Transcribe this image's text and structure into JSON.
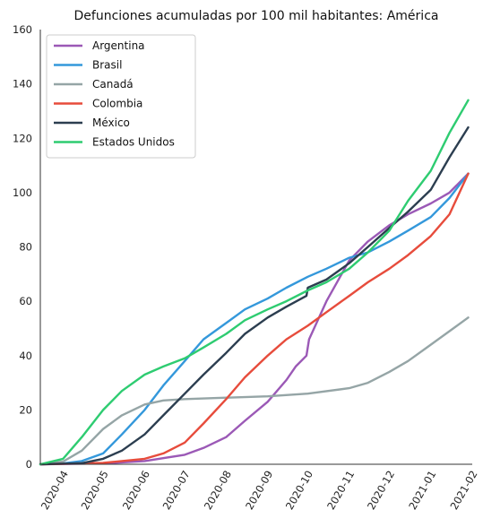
{
  "chart_data": {
    "type": "line",
    "title": "Defunciones acumuladas por 100 mil habitantes: América",
    "xlabel": "",
    "ylabel": "",
    "ylim": [
      0,
      160
    ],
    "xlim": [
      "2020-03-15",
      "2021-02-01"
    ],
    "yticks": [
      0,
      20,
      40,
      60,
      80,
      100,
      120,
      140,
      160
    ],
    "xticks": [
      "2020-04",
      "2020-05",
      "2020-06",
      "2020-07",
      "2020-08",
      "2020-09",
      "2020-10",
      "2020-11",
      "2020-12",
      "2021-01",
      "2021-02"
    ],
    "grid": false,
    "legend_position": "top-left",
    "series": [
      {
        "name": "Argentina",
        "color": "#9b59b6",
        "points": [
          [
            "2020-03-15",
            0
          ],
          [
            "2020-05-01",
            0.3
          ],
          [
            "2020-06-01",
            1.2
          ],
          [
            "2020-07-01",
            3.5
          ],
          [
            "2020-07-15",
            6
          ],
          [
            "2020-08-01",
            10
          ],
          [
            "2020-08-15",
            16
          ],
          [
            "2020-09-01",
            23
          ],
          [
            "2020-09-15",
            31
          ],
          [
            "2020-09-22",
            36
          ],
          [
            "2020-09-30",
            40
          ],
          [
            "2020-10-02",
            46
          ],
          [
            "2020-10-15",
            60
          ],
          [
            "2020-11-01",
            75
          ],
          [
            "2020-11-15",
            82
          ],
          [
            "2020-12-01",
            88
          ],
          [
            "2020-12-15",
            92
          ],
          [
            "2021-01-01",
            96
          ],
          [
            "2021-01-15",
            100
          ],
          [
            "2021-01-29",
            107
          ]
        ]
      },
      {
        "name": "Brasil",
        "color": "#3498db",
        "points": [
          [
            "2020-03-15",
            0
          ],
          [
            "2020-04-01",
            0.3
          ],
          [
            "2020-04-15",
            1.2
          ],
          [
            "2020-05-01",
            4
          ],
          [
            "2020-05-15",
            11
          ],
          [
            "2020-06-01",
            20
          ],
          [
            "2020-06-15",
            29
          ],
          [
            "2020-07-01",
            38
          ],
          [
            "2020-07-15",
            46
          ],
          [
            "2020-08-01",
            52
          ],
          [
            "2020-08-15",
            57
          ],
          [
            "2020-09-01",
            61
          ],
          [
            "2020-09-15",
            65
          ],
          [
            "2020-10-01",
            69
          ],
          [
            "2020-10-15",
            72
          ],
          [
            "2020-11-01",
            76
          ],
          [
            "2020-11-15",
            78
          ],
          [
            "2020-12-01",
            82
          ],
          [
            "2020-12-15",
            86
          ],
          [
            "2021-01-01",
            91
          ],
          [
            "2021-01-15",
            98
          ],
          [
            "2021-01-29",
            107
          ]
        ]
      },
      {
        "name": "Canadá",
        "color": "#95a5a6",
        "points": [
          [
            "2020-03-15",
            0
          ],
          [
            "2020-04-01",
            1
          ],
          [
            "2020-04-15",
            5
          ],
          [
            "2020-05-01",
            13
          ],
          [
            "2020-05-15",
            18
          ],
          [
            "2020-06-01",
            22
          ],
          [
            "2020-06-15",
            23.5
          ],
          [
            "2020-07-01",
            24
          ],
          [
            "2020-08-01",
            24.5
          ],
          [
            "2020-09-01",
            25
          ],
          [
            "2020-10-01",
            26
          ],
          [
            "2020-11-01",
            28
          ],
          [
            "2020-11-15",
            30
          ],
          [
            "2020-12-01",
            34
          ],
          [
            "2020-12-15",
            38
          ],
          [
            "2021-01-01",
            44
          ],
          [
            "2021-01-15",
            49
          ],
          [
            "2021-01-29",
            54
          ]
        ]
      },
      {
        "name": "Colombia",
        "color": "#e74c3c",
        "points": [
          [
            "2020-03-15",
            0
          ],
          [
            "2020-05-01",
            0.5
          ],
          [
            "2020-06-01",
            2
          ],
          [
            "2020-06-15",
            4
          ],
          [
            "2020-07-01",
            8
          ],
          [
            "2020-07-15",
            15
          ],
          [
            "2020-08-01",
            24
          ],
          [
            "2020-08-15",
            32
          ],
          [
            "2020-09-01",
            40
          ],
          [
            "2020-09-15",
            46
          ],
          [
            "2020-10-01",
            51
          ],
          [
            "2020-10-15",
            56
          ],
          [
            "2020-11-01",
            62
          ],
          [
            "2020-11-15",
            67
          ],
          [
            "2020-12-01",
            72
          ],
          [
            "2020-12-15",
            77
          ],
          [
            "2021-01-01",
            84
          ],
          [
            "2021-01-15",
            92
          ],
          [
            "2021-01-29",
            107
          ]
        ]
      },
      {
        "name": "México",
        "color": "#2c3e50",
        "points": [
          [
            "2020-03-15",
            0
          ],
          [
            "2020-04-15",
            0.4
          ],
          [
            "2020-05-01",
            2
          ],
          [
            "2020-05-15",
            5
          ],
          [
            "2020-06-01",
            11
          ],
          [
            "2020-06-15",
            18
          ],
          [
            "2020-07-01",
            26
          ],
          [
            "2020-07-15",
            33
          ],
          [
            "2020-08-01",
            41
          ],
          [
            "2020-08-15",
            48
          ],
          [
            "2020-09-01",
            54
          ],
          [
            "2020-09-15",
            58
          ],
          [
            "2020-09-30",
            62
          ],
          [
            "2020-10-01",
            65
          ],
          [
            "2020-10-15",
            68
          ],
          [
            "2020-11-01",
            74
          ],
          [
            "2020-11-15",
            80
          ],
          [
            "2020-12-01",
            87
          ],
          [
            "2020-12-15",
            93
          ],
          [
            "2021-01-01",
            101
          ],
          [
            "2021-01-15",
            113
          ],
          [
            "2021-01-29",
            124
          ]
        ]
      },
      {
        "name": "Estados Unidos",
        "color": "#2ecc71",
        "points": [
          [
            "2020-03-15",
            0
          ],
          [
            "2020-04-01",
            2
          ],
          [
            "2020-04-15",
            10
          ],
          [
            "2020-05-01",
            20
          ],
          [
            "2020-05-15",
            27
          ],
          [
            "2020-06-01",
            33
          ],
          [
            "2020-06-15",
            36
          ],
          [
            "2020-07-01",
            39
          ],
          [
            "2020-07-15",
            43
          ],
          [
            "2020-08-01",
            48
          ],
          [
            "2020-08-15",
            53
          ],
          [
            "2020-09-01",
            57
          ],
          [
            "2020-09-15",
            60
          ],
          [
            "2020-10-01",
            64
          ],
          [
            "2020-10-15",
            67
          ],
          [
            "2020-11-01",
            72
          ],
          [
            "2020-11-15",
            78
          ],
          [
            "2020-12-01",
            86
          ],
          [
            "2020-12-15",
            97
          ],
          [
            "2021-01-01",
            108
          ],
          [
            "2021-01-15",
            122
          ],
          [
            "2021-01-29",
            134
          ]
        ]
      }
    ]
  }
}
